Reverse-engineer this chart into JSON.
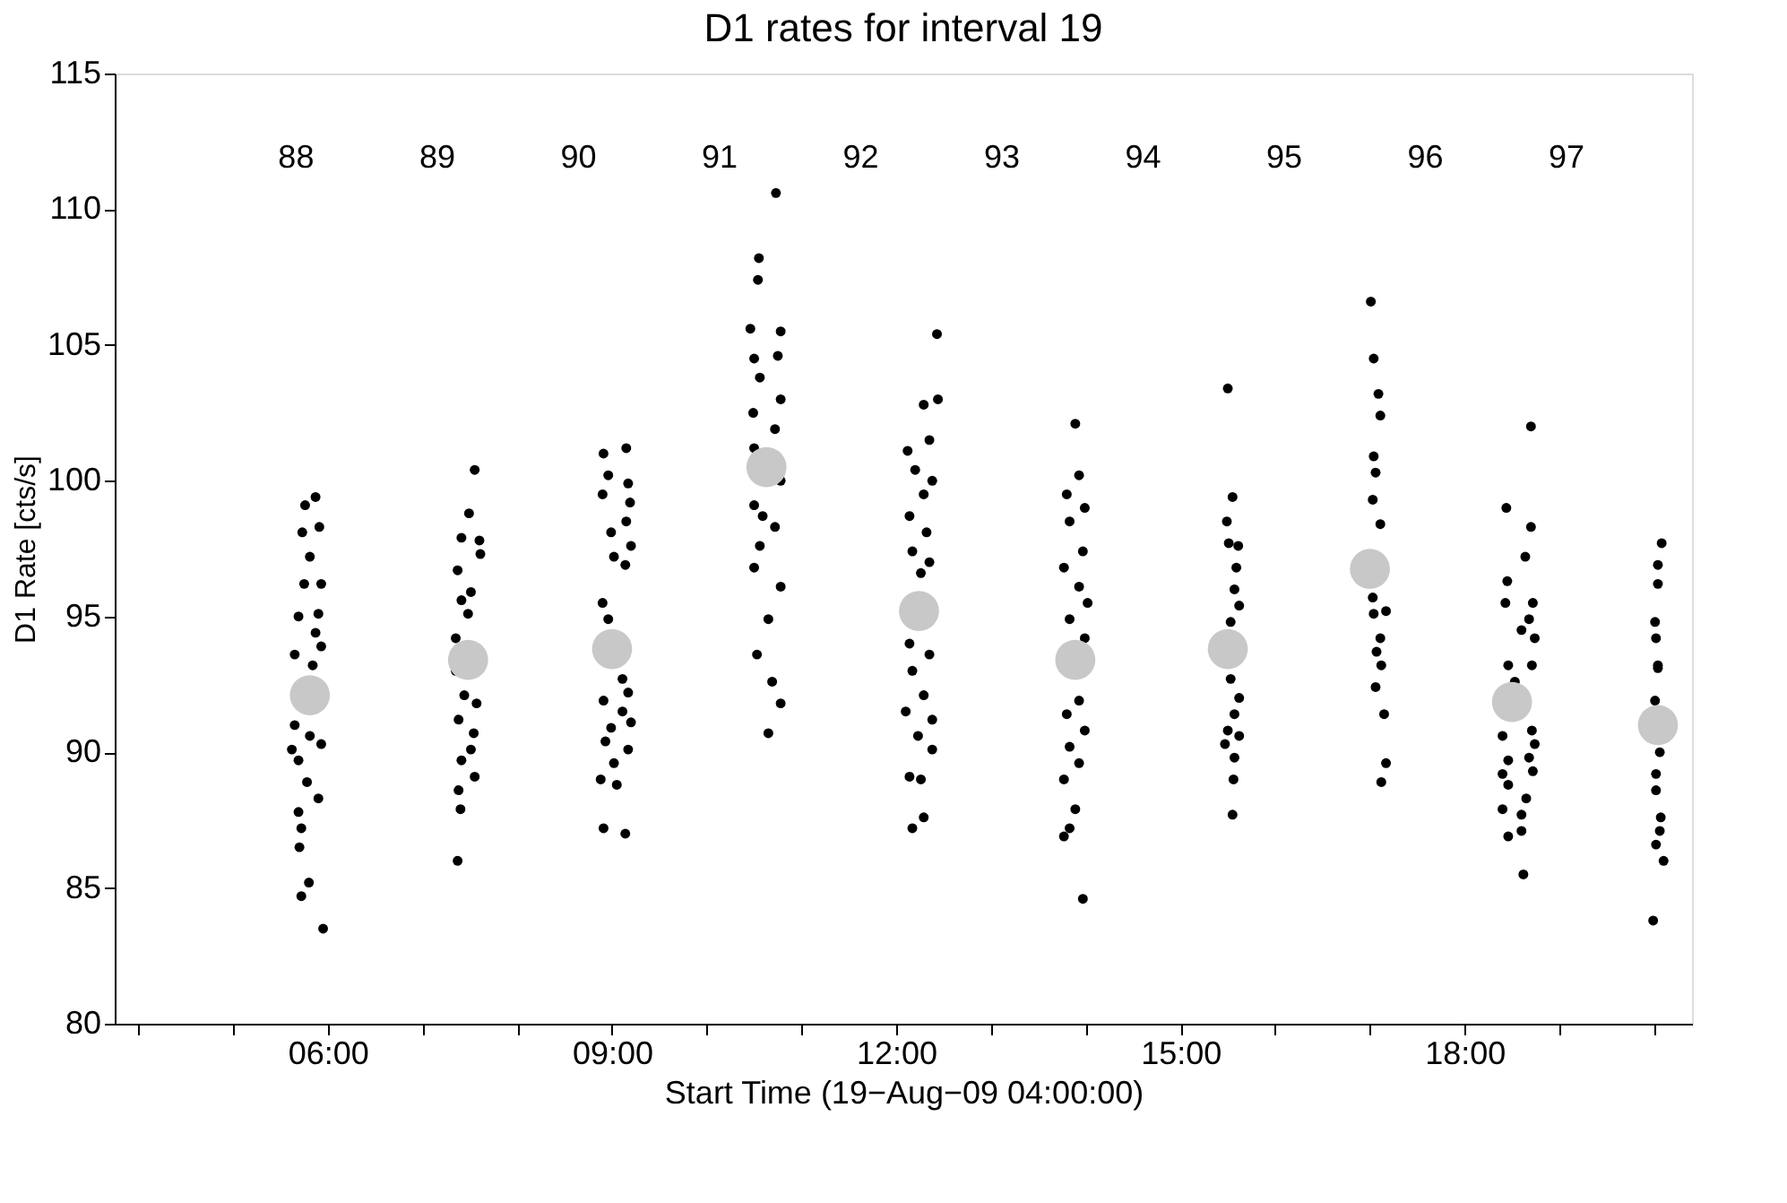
{
  "chart_data": {
    "type": "scatter",
    "title": "D1 rates for interval  19",
    "xlabel": "Start Time (19−Aug−09 04:00:00)",
    "ylabel": "D1 Rate [cts/s]",
    "xlim": [
      3.75,
      20.4
    ],
    "xticks": [
      {
        "value": 4,
        "label": null
      },
      {
        "value": 5,
        "label": null
      },
      {
        "value": 6,
        "label": "06:00"
      },
      {
        "value": 7,
        "label": null
      },
      {
        "value": 8,
        "label": null
      },
      {
        "value": 9,
        "label": "09:00"
      },
      {
        "value": 10,
        "label": null
      },
      {
        "value": 11,
        "label": null
      },
      {
        "value": 12,
        "label": "12:00"
      },
      {
        "value": 13,
        "label": null
      },
      {
        "value": 14,
        "label": null
      },
      {
        "value": 15,
        "label": "15:00"
      },
      {
        "value": 16,
        "label": null
      },
      {
        "value": 17,
        "label": null
      },
      {
        "value": 18,
        "label": "18:00"
      },
      {
        "value": 19,
        "label": null
      },
      {
        "value": 20,
        "label": null
      }
    ],
    "ylim": [
      80,
      115
    ],
    "yticks": [
      80,
      85,
      90,
      95,
      100,
      105,
      110,
      115
    ],
    "grid": false,
    "marker": "circle",
    "series": [
      {
        "color": "#000000",
        "x": [
          5.87,
          5.76,
          5.91,
          5.73,
          5.81,
          5.93,
          5.75,
          5.69,
          5.9,
          5.87,
          5.65,
          5.93,
          5.84,
          5.65,
          5.93,
          5.69,
          5.78,
          5.9,
          5.69,
          5.72,
          5.7,
          5.8,
          5.72,
          5.95,
          5.62,
          5.81,
          7.55,
          7.49,
          7.41,
          7.6,
          7.61,
          7.37,
          7.51,
          7.41,
          7.48,
          7.35,
          7.35,
          7.57,
          7.38,
          7.54,
          7.51,
          7.41,
          7.55,
          7.38,
          7.4,
          7.37,
          7.44,
          9.15,
          8.91,
          8.96,
          9.17,
          8.9,
          9.19,
          9.15,
          8.99,
          9.2,
          9.02,
          9.14,
          8.9,
          8.96,
          9.11,
          9.17,
          8.91,
          9.11,
          8.99,
          9.2,
          8.93,
          9.17,
          9.02,
          8.88,
          9.05,
          8.91,
          9.14,
          10.73,
          10.55,
          10.54,
          10.46,
          10.78,
          10.5,
          10.75,
          10.56,
          10.78,
          10.49,
          10.72,
          10.5,
          10.78,
          10.5,
          10.72,
          10.56,
          10.5,
          10.78,
          10.65,
          10.53,
          10.69,
          10.78,
          10.65,
          10.59,
          12.43,
          12.29,
          12.44,
          12.12,
          12.35,
          12.2,
          12.38,
          12.29,
          12.14,
          12.32,
          12.17,
          12.35,
          12.26,
          12.14,
          12.35,
          12.17,
          12.29,
          12.1,
          12.38,
          12.23,
          12.38,
          12.14,
          12.26,
          12.29,
          12.17,
          13.89,
          13.93,
          13.8,
          13.99,
          13.83,
          13.97,
          13.77,
          13.93,
          14.02,
          13.83,
          13.99,
          13.93,
          13.8,
          13.99,
          13.83,
          13.93,
          13.77,
          13.89,
          13.83,
          13.77,
          13.97,
          15.5,
          15.55,
          15.49,
          15.51,
          15.61,
          15.59,
          15.57,
          15.62,
          15.53,
          15.53,
          15.62,
          15.57,
          15.5,
          15.62,
          15.47,
          15.57,
          15.56,
          15.55,
          17.01,
          17.04,
          17.09,
          17.11,
          17.04,
          17.06,
          17.03,
          17.11,
          17.17,
          17.04,
          17.11,
          17.07,
          17.12,
          17.06,
          17.15,
          17.17,
          17.12,
          17.03,
          18.7,
          18.44,
          18.7,
          18.64,
          18.45,
          18.72,
          18.43,
          18.68,
          18.6,
          18.74,
          18.46,
          18.71,
          18.53,
          18.4,
          18.74,
          18.46,
          18.68,
          18.4,
          18.72,
          18.46,
          18.65,
          18.4,
          18.6,
          18.46,
          18.6,
          18.62,
          18.71,
          20.08,
          20.04,
          20.04,
          20.01,
          20.02,
          20.04,
          20.01,
          20.06,
          20.02,
          20.02,
          20.07,
          20.06,
          20.02,
          20.1,
          19.99,
          20.04
        ],
        "values": [
          99.4,
          99.1,
          98.3,
          98.1,
          97.2,
          96.2,
          96.2,
          95.0,
          95.1,
          94.4,
          93.6,
          93.9,
          93.2,
          91.0,
          90.3,
          89.7,
          88.9,
          88.3,
          87.8,
          87.2,
          86.5,
          85.2,
          84.7,
          83.5,
          90.1,
          90.6,
          100.4,
          98.8,
          97.9,
          97.8,
          97.3,
          96.7,
          95.9,
          95.6,
          95.1,
          94.2,
          93.0,
          91.8,
          91.2,
          90.7,
          90.1,
          89.7,
          89.1,
          88.6,
          87.9,
          86.0,
          92.1,
          101.2,
          101.0,
          100.2,
          99.9,
          99.5,
          99.2,
          98.5,
          98.1,
          97.6,
          97.2,
          96.9,
          95.5,
          94.9,
          92.7,
          92.2,
          91.9,
          91.5,
          90.9,
          91.1,
          90.4,
          90.1,
          89.6,
          89.0,
          88.8,
          87.2,
          87.0,
          110.6,
          108.2,
          107.4,
          105.6,
          105.5,
          104.5,
          104.6,
          103.8,
          103.0,
          102.5,
          101.9,
          101.2,
          100.0,
          99.1,
          98.3,
          97.6,
          96.8,
          96.1,
          94.9,
          93.6,
          92.6,
          91.8,
          90.7,
          98.7,
          105.4,
          102.8,
          103.0,
          101.1,
          101.5,
          100.4,
          100.0,
          99.5,
          98.7,
          98.1,
          97.4,
          97.0,
          96.6,
          94.0,
          93.6,
          93.0,
          92.1,
          91.5,
          91.2,
          90.6,
          90.1,
          89.1,
          89.0,
          87.6,
          87.2,
          102.1,
          100.2,
          99.5,
          99.0,
          98.5,
          97.4,
          96.8,
          96.1,
          95.5,
          94.9,
          94.2,
          91.9,
          91.4,
          90.8,
          90.2,
          89.6,
          89.0,
          87.9,
          87.2,
          86.9,
          84.6,
          103.4,
          99.4,
          98.5,
          97.7,
          97.6,
          96.8,
          96.0,
          95.4,
          94.8,
          92.7,
          92.0,
          91.4,
          90.8,
          90.6,
          90.3,
          89.8,
          89.0,
          87.7,
          106.6,
          104.5,
          103.2,
          102.4,
          100.9,
          100.3,
          99.3,
          98.4,
          95.2,
          95.1,
          94.2,
          93.7,
          93.2,
          92.4,
          91.4,
          89.6,
          88.9,
          95.7,
          102.0,
          99.0,
          98.3,
          97.2,
          96.3,
          95.5,
          95.5,
          94.9,
          94.5,
          94.2,
          93.2,
          93.2,
          92.6,
          90.6,
          90.3,
          89.7,
          89.8,
          89.2,
          89.3,
          88.8,
          88.3,
          87.9,
          87.7,
          86.9,
          87.1,
          85.5,
          90.8,
          97.7,
          96.9,
          96.2,
          94.8,
          94.2,
          93.1,
          91.9,
          90.0,
          89.2,
          88.6,
          87.6,
          87.1,
          86.6,
          86.0,
          83.8,
          93.2
        ]
      },
      {
        "color": "#c8c8c8",
        "x": [
          5.81,
          7.48,
          9.0,
          10.63,
          12.24,
          13.89,
          15.5,
          17.0,
          18.5,
          20.04
        ],
        "values": [
          92.1,
          93.4,
          93.8,
          100.5,
          95.2,
          93.4,
          93.8,
          96.75,
          91.85,
          91.0
        ]
      }
    ],
    "annotations": [
      "88",
      "89",
      "90",
      "91",
      "92",
      "93",
      "94",
      "95",
      "96",
      "97"
    ]
  }
}
